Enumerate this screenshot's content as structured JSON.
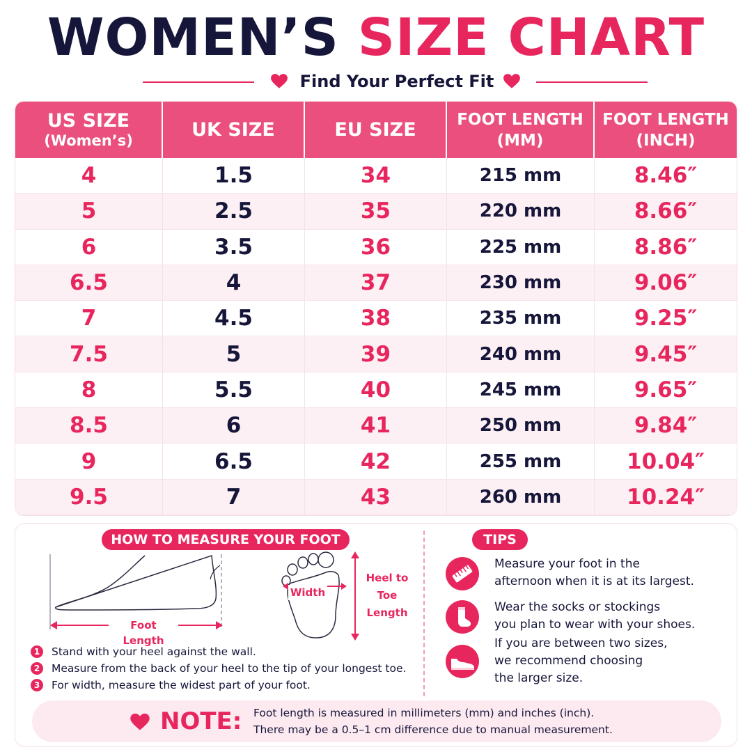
{
  "header": {
    "title_part1": "WOMEN’S",
    "title_part2": "SIZE CHART",
    "subtitle": "Find Your Perfect Fit"
  },
  "colors": {
    "accent": "#e8265e",
    "header_bg": "#ea4f7e",
    "navy": "#16163a",
    "stripe": "#fdf0f4"
  },
  "table": {
    "headers": [
      {
        "line1": "US SIZE",
        "line2": "(Women’s)"
      },
      {
        "line1": "UK SIZE",
        "line2": ""
      },
      {
        "line1": "EU SIZE",
        "line2": ""
      },
      {
        "line1": "FOOT LENGTH",
        "line2": "(MM)"
      },
      {
        "line1": "FOOT LENGTH",
        "line2": "(INCH)"
      }
    ],
    "rows": [
      [
        "4",
        "1.5",
        "34",
        "215 mm",
        "8.46″"
      ],
      [
        "5",
        "2.5",
        "35",
        "220 mm",
        "8.66″"
      ],
      [
        "6",
        "3.5",
        "36",
        "225 mm",
        "8.86″"
      ],
      [
        "6.5",
        "4",
        "37",
        "230 mm",
        "9.06″"
      ],
      [
        "7",
        "4.5",
        "38",
        "235 mm",
        "9.25″"
      ],
      [
        "7.5",
        "5",
        "39",
        "240 mm",
        "9.45″"
      ],
      [
        "8",
        "5.5",
        "40",
        "245 mm",
        "9.65″"
      ],
      [
        "8.5",
        "6",
        "41",
        "250 mm",
        "9.84″"
      ],
      [
        "9",
        "6.5",
        "42",
        "255 mm",
        "10.04″"
      ],
      [
        "9.5",
        "7",
        "43",
        "260 mm",
        "10.24″"
      ]
    ]
  },
  "measure": {
    "title": "HOW TO MEASURE YOUR FOOT",
    "foot_length_label": "Foot Length",
    "width_label": "Width",
    "heel_to_toe_lines": [
      "Heel to",
      "Toe",
      "Length"
    ],
    "steps": [
      {
        "num": "1",
        "text": "Stand with your heel against the wall."
      },
      {
        "num": "2",
        "text": "Measure from the back of your heel to the tip of your longest toe."
      },
      {
        "num": "3",
        "text": "For width, measure the widest part of your foot."
      }
    ]
  },
  "tips": {
    "title": "TIPS",
    "items": [
      {
        "icon": "ruler-icon",
        "line1": "Measure your foot in the",
        "line2": "afternoon when it is at its largest.",
        "line3": ""
      },
      {
        "icon": "sock-icon",
        "line1": "Wear the socks or stockings",
        "line2": "you plan to wear with your shoes.",
        "line3": ""
      },
      {
        "icon": "shoe-icon",
        "line1": "If you are between two sizes,",
        "line2": "we recommend choosing",
        "line3": "the larger size."
      }
    ]
  },
  "note": {
    "label": "NOTE:",
    "line1": "Foot length is measured in millimeters (mm) and inches (inch).",
    "line2": "There may be a 0.5–1 cm difference due to manual measurement."
  }
}
